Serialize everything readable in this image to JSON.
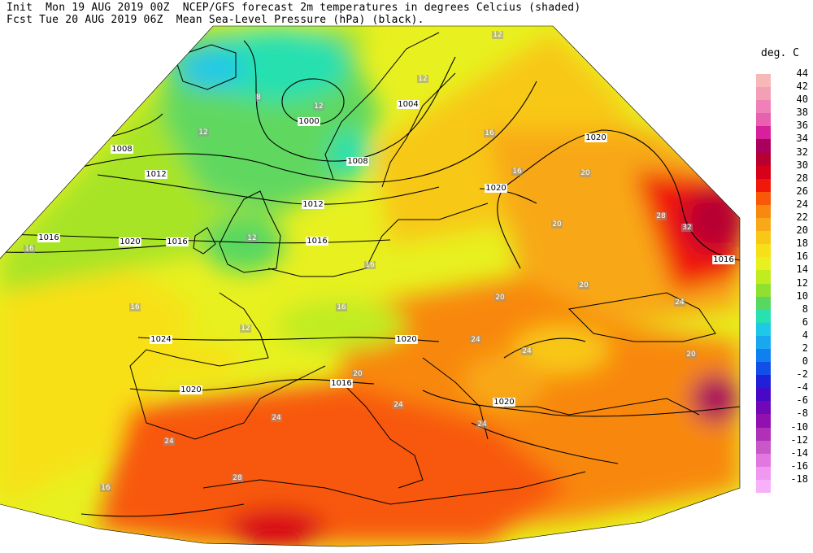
{
  "header": {
    "line1": "Init  Mon 19 AUG 2019 00Z  NCEP/GFS forecast 2m temperatures in degrees Celcius (shaded)",
    "line2": "Fcst Tue 20 AUG 2019 06Z  Mean Sea-Level Pressure (hPa) (black)."
  },
  "legend": {
    "units": "deg. C",
    "items": [
      {
        "label": "44",
        "color": "#f8b8b8"
      },
      {
        "label": "42",
        "color": "#f4a0b4"
      },
      {
        "label": "40",
        "color": "#f080b8"
      },
      {
        "label": "38",
        "color": "#e860b0"
      },
      {
        "label": "36",
        "color": "#d8209c"
      },
      {
        "label": "34",
        "color": "#a8005c"
      },
      {
        "label": "32",
        "color": "#b80030"
      },
      {
        "label": "30",
        "color": "#d80018"
      },
      {
        "label": "28",
        "color": "#f01808"
      },
      {
        "label": "26",
        "color": "#f85808"
      },
      {
        "label": "24",
        "color": "#f88810"
      },
      {
        "label": "22",
        "color": "#f8a818"
      },
      {
        "label": "20",
        "color": "#f8c818"
      },
      {
        "label": "18",
        "color": "#f8e018"
      },
      {
        "label": "16",
        "color": "#e8f020"
      },
      {
        "label": "14",
        "color": "#c0ec20"
      },
      {
        "label": "12",
        "color": "#90e030"
      },
      {
        "label": "10",
        "color": "#58d860"
      },
      {
        "label": "8",
        "color": "#28e0b0"
      },
      {
        "label": "6",
        "color": "#20c8e8"
      },
      {
        "label": "4",
        "color": "#18a8f0"
      },
      {
        "label": "2",
        "color": "#1080f0"
      },
      {
        "label": "0",
        "color": "#1050e8"
      },
      {
        "label": "-2",
        "color": "#2020d8"
      },
      {
        "label": "-4",
        "color": "#4808c8"
      },
      {
        "label": "-6",
        "color": "#7008b8"
      },
      {
        "label": "-8",
        "color": "#9010b0"
      },
      {
        "label": "-10",
        "color": "#b030b8"
      },
      {
        "label": "-12",
        "color": "#c858c8"
      },
      {
        "label": "-14",
        "color": "#e078e0"
      },
      {
        "label": "-16",
        "color": "#f098f0"
      },
      {
        "label": "-18",
        "color": "#f8b0f8"
      }
    ]
  },
  "isobar_labels": [
    {
      "text": "1000"
    },
    {
      "text": "1004"
    },
    {
      "text": "1008"
    },
    {
      "text": "1008"
    },
    {
      "text": "1012"
    },
    {
      "text": "1012"
    },
    {
      "text": "1016"
    },
    {
      "text": "1016"
    },
    {
      "text": "1016"
    },
    {
      "text": "1016"
    },
    {
      "text": "1016"
    },
    {
      "text": "1020"
    },
    {
      "text": "1020"
    },
    {
      "text": "1020"
    },
    {
      "text": "1020"
    },
    {
      "text": "1020"
    },
    {
      "text": "1020"
    },
    {
      "text": "1024"
    }
  ],
  "temp_labels": [
    {
      "text": "4"
    },
    {
      "text": "8"
    },
    {
      "text": "12"
    },
    {
      "text": "12"
    },
    {
      "text": "12"
    },
    {
      "text": "12"
    },
    {
      "text": "12"
    },
    {
      "text": "12"
    },
    {
      "text": "16"
    },
    {
      "text": "16"
    },
    {
      "text": "16"
    },
    {
      "text": "16"
    },
    {
      "text": "16"
    },
    {
      "text": "16"
    },
    {
      "text": "16"
    },
    {
      "text": "20"
    },
    {
      "text": "20"
    },
    {
      "text": "20"
    },
    {
      "text": "20"
    },
    {
      "text": "20"
    },
    {
      "text": "20"
    },
    {
      "text": "24"
    },
    {
      "text": "24"
    },
    {
      "text": "24"
    },
    {
      "text": "24"
    },
    {
      "text": "24"
    },
    {
      "text": "24"
    },
    {
      "text": "24"
    },
    {
      "text": "28"
    },
    {
      "text": "28"
    },
    {
      "text": "32"
    }
  ]
}
